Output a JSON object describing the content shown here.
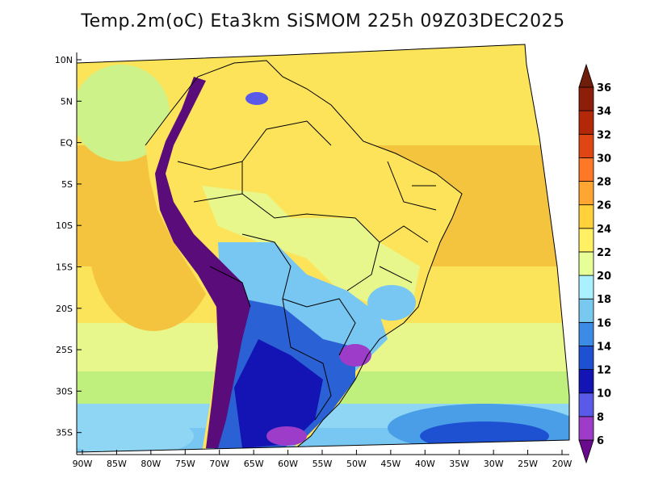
{
  "title": "Temp.2m(oC) Eta3km SiSMOM 225h 09Z03DEC2025",
  "lat_labels": [
    "10N",
    "5N",
    "EQ",
    "5S",
    "10S",
    "15S",
    "20S",
    "25S",
    "30S",
    "35S"
  ],
  "lon_labels": [
    "90W",
    "85W",
    "80W",
    "75W",
    "70W",
    "65W",
    "60W",
    "55W",
    "50W",
    "45W",
    "40W",
    "35W",
    "30W",
    "25W",
    "20W"
  ],
  "colorbar": {
    "labels": [
      "6",
      "8",
      "10",
      "12",
      "14",
      "16",
      "18",
      "20",
      "22",
      "24",
      "26",
      "28",
      "30",
      "32",
      "34",
      "36"
    ],
    "colors": [
      "#6a0a8c",
      "#9d3cc8",
      "#5a5ae8",
      "#1414b4",
      "#1e50d2",
      "#3c8ce6",
      "#78c8f0",
      "#aaf0ff",
      "#e6ff96",
      "#fff064",
      "#ffd23c",
      "#ffa532",
      "#ff7828",
      "#e04614",
      "#b4280a",
      "#8c1e0a",
      "#6e1e0a"
    ]
  },
  "colors": {
    "ocean_tropical": "#f5c43e",
    "ocean_subtropical": "#fbe45a",
    "ocean_midlat": "#bff07e",
    "ocean_cool": "#8fd6f4",
    "ocean_cold": "#4a9ee8",
    "land_warm": "#fde35a",
    "land_mild": "#e8f78c",
    "land_cool": "#78c6f2",
    "land_cold": "#2a62d6",
    "andes": "#5a0c7a",
    "borders": "#000000"
  }
}
